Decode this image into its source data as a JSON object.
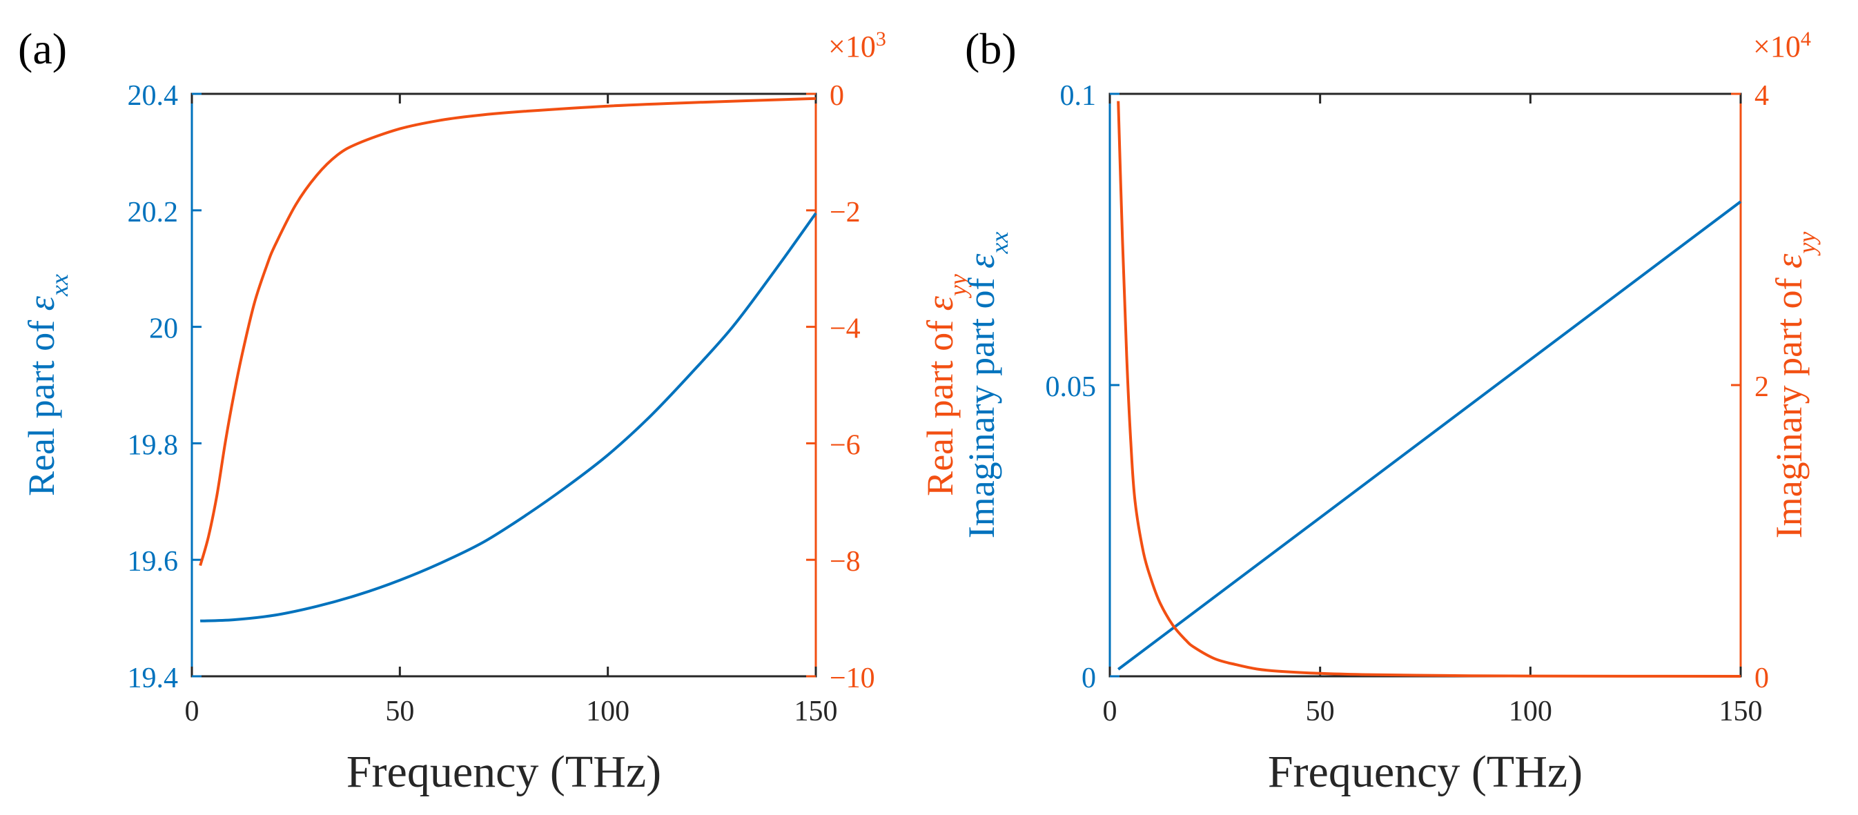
{
  "colors": {
    "left": "#0072BD",
    "right": "#F24F12",
    "axis": "#262626"
  },
  "chart_data": [
    {
      "type": "line",
      "panel_label": "(a)",
      "xlabel": "Frequency (THz)",
      "xlim": [
        0,
        150
      ],
      "xticks": [
        0,
        50,
        100,
        150
      ],
      "xtick_labels": [
        "0",
        "50",
        "100",
        "150"
      ],
      "left_axis": {
        "label_main": "Real part of ",
        "label_sym": "ε",
        "label_sub": "xx",
        "ylim": [
          19.4,
          20.4
        ],
        "ticks": [
          19.4,
          19.6,
          19.8,
          20.0,
          20.2,
          20.4
        ],
        "tick_labels": [
          "19.4",
          "19.6",
          "19.8",
          "20",
          "20.2",
          "20.4"
        ]
      },
      "right_axis": {
        "label_main": "Real part of ",
        "label_sym": "ε",
        "label_sub": "yy",
        "multiplier_base": "×10",
        "multiplier_exp": "3",
        "ylim": [
          -10,
          0
        ],
        "ticks": [
          -10,
          -8,
          -6,
          -4,
          -2,
          0
        ],
        "tick_labels": [
          "−10",
          "−8",
          "−6",
          "−4",
          "−2",
          "0"
        ]
      },
      "series": [
        {
          "name": "Real part of ε_xx",
          "axis": "left",
          "x": [
            2,
            10,
            20,
            30,
            40,
            50,
            60,
            70,
            80,
            90,
            100,
            110,
            120,
            130,
            140,
            150
          ],
          "y": [
            19.495,
            19.497,
            19.505,
            19.52,
            19.54,
            19.565,
            19.595,
            19.63,
            19.675,
            19.725,
            19.78,
            19.845,
            19.92,
            20.0,
            20.095,
            20.195
          ]
        },
        {
          "name": "Real part of ε_yy",
          "axis": "right",
          "x": [
            2,
            4,
            6,
            8,
            10,
            12,
            15,
            18,
            20,
            25,
            30,
            35,
            40,
            50,
            60,
            70,
            80,
            100,
            120,
            150
          ],
          "y": [
            -8.1,
            -7.6,
            -6.9,
            -6.0,
            -5.2,
            -4.5,
            -3.6,
            -2.95,
            -2.6,
            -1.9,
            -1.4,
            -1.05,
            -0.85,
            -0.6,
            -0.45,
            -0.36,
            -0.3,
            -0.21,
            -0.15,
            -0.08
          ]
        }
      ]
    },
    {
      "type": "line",
      "panel_label": "(b)",
      "xlabel": "Frequency (THz)",
      "xlim": [
        0,
        150
      ],
      "xticks": [
        0,
        50,
        100,
        150
      ],
      "xtick_labels": [
        "0",
        "50",
        "100",
        "150"
      ],
      "left_axis": {
        "label_main": "Imaginary part of ",
        "label_sym": "ε",
        "label_sub": "xx",
        "ylim": [
          0,
          0.1
        ],
        "ticks": [
          0,
          0.05,
          0.1
        ],
        "tick_labels": [
          "0",
          "0.05",
          "0.1"
        ]
      },
      "right_axis": {
        "label_main": "Imaginary part of ",
        "label_sym": "ε",
        "label_sub": "yy",
        "multiplier_base": "×10",
        "multiplier_exp": "4",
        "ylim": [
          0,
          4
        ],
        "ticks": [
          0,
          2,
          4
        ],
        "tick_labels": [
          "0",
          "2",
          "4"
        ]
      },
      "series": [
        {
          "name": "Imaginary part of ε_xx",
          "axis": "left",
          "x": [
            2,
            150
          ],
          "y": [
            0.0012,
            0.0815
          ]
        },
        {
          "name": "Imaginary part of ε_yy",
          "axis": "right",
          "x": [
            2,
            3,
            4,
            5,
            6,
            8,
            10,
            12,
            15,
            18,
            20,
            25,
            30,
            35,
            40,
            50,
            60,
            80,
            100,
            150
          ],
          "y": [
            3.95,
            3.0,
            2.2,
            1.6,
            1.2,
            0.85,
            0.65,
            0.5,
            0.35,
            0.25,
            0.2,
            0.12,
            0.08,
            0.05,
            0.035,
            0.02,
            0.012,
            0.005,
            0.002,
            0.0
          ]
        }
      ]
    }
  ]
}
